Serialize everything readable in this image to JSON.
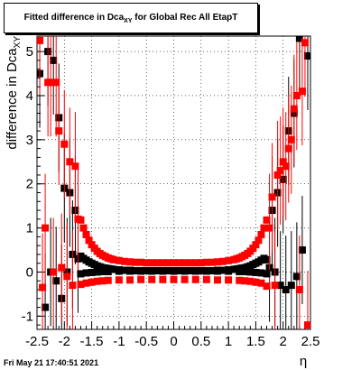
{
  "title": {
    "prefix": "Fitted difference in Dca",
    "subscript": "XY",
    "suffix": " for Global Rec All EtapT"
  },
  "timestamp": "Fri May 21 17:40:51 2021",
  "chart_data": {
    "type": "scatter",
    "xlabel": "η",
    "ylabel_prefix": "difference in Dca",
    "ylabel_subscript": "XY",
    "xlim": [
      -2.5,
      2.5
    ],
    "ylim": [
      -1.3,
      5.35
    ],
    "x_ticks": [
      "-2.5",
      "-2",
      "-1.5",
      "-1",
      "-0.5",
      "0",
      "0.5",
      "1",
      "1.5",
      "2",
      "2.5"
    ],
    "y_ticks": [
      "-1",
      "0",
      "1",
      "2",
      "3",
      "4",
      "5"
    ],
    "grid": true,
    "series": [
      {
        "color": "#000000",
        "marker": "square",
        "points": [
          [
            -2.45,
            4.5
          ],
          [
            -2.35,
            -0.8
          ],
          [
            -2.3,
            5.0
          ],
          [
            -2.25,
            0.0
          ],
          [
            -2.2,
            4.8
          ],
          [
            -2.15,
            -0.2
          ],
          [
            -2.1,
            3.5
          ],
          [
            -2.05,
            -0.6
          ],
          [
            -2.0,
            1.9
          ],
          [
            -1.95,
            0.0
          ],
          [
            -1.9,
            1.8
          ],
          [
            -1.85,
            0.4
          ],
          [
            -1.8,
            1.4
          ],
          [
            -1.75,
            0.3
          ],
          [
            -1.7,
            0.36
          ],
          [
            -1.65,
            0.31
          ],
          [
            -1.6,
            0.27
          ],
          [
            -1.55,
            0.23
          ],
          [
            -1.5,
            0.2
          ],
          [
            -1.45,
            0.17
          ],
          [
            -1.4,
            0.14
          ],
          [
            -1.35,
            0.12
          ],
          [
            -1.3,
            0.1
          ],
          [
            -1.25,
            0.09
          ],
          [
            -1.2,
            0.08
          ],
          [
            -1.15,
            0.07
          ],
          [
            -1.1,
            0.06
          ],
          [
            -1.0,
            0.05
          ],
          [
            -0.9,
            0.04
          ],
          [
            -0.8,
            0.04
          ],
          [
            -0.7,
            0.03
          ],
          [
            -0.6,
            0.03
          ],
          [
            -0.5,
            0.03
          ],
          [
            -0.4,
            0.03
          ],
          [
            -0.3,
            0.03
          ],
          [
            -0.2,
            0.03
          ],
          [
            -0.1,
            0.03
          ],
          [
            0.0,
            0.03
          ],
          [
            0.1,
            0.03
          ],
          [
            0.2,
            0.03
          ],
          [
            0.3,
            0.03
          ],
          [
            0.4,
            0.03
          ],
          [
            0.5,
            0.03
          ],
          [
            0.6,
            0.03
          ],
          [
            0.7,
            0.03
          ],
          [
            0.8,
            0.04
          ],
          [
            0.9,
            0.04
          ],
          [
            1.0,
            0.05
          ],
          [
            1.1,
            0.06
          ],
          [
            1.15,
            0.07
          ],
          [
            1.2,
            0.08
          ],
          [
            1.25,
            0.09
          ],
          [
            1.3,
            0.1
          ],
          [
            1.35,
            0.12
          ],
          [
            1.4,
            0.14
          ],
          [
            1.45,
            0.17
          ],
          [
            1.5,
            0.2
          ],
          [
            1.55,
            0.23
          ],
          [
            1.6,
            0.27
          ],
          [
            1.65,
            0.31
          ],
          [
            1.7,
            0.28
          ],
          [
            1.75,
            0.1
          ],
          [
            1.8,
            1.4
          ],
          [
            1.85,
            0.0
          ],
          [
            1.9,
            1.8
          ],
          [
            1.95,
            -0.3
          ],
          [
            2.0,
            2.1
          ],
          [
            2.05,
            -0.4
          ],
          [
            2.1,
            3.2
          ],
          [
            2.15,
            -0.3
          ],
          [
            2.2,
            3.6
          ],
          [
            2.25,
            -0.1
          ],
          [
            2.3,
            5.3
          ],
          [
            2.35,
            0.5
          ],
          [
            2.45,
            4.9
          ]
        ]
      },
      {
        "color": "#ff0000",
        "marker": "square",
        "points": [
          [
            -2.45,
            5.25
          ],
          [
            -2.4,
            -0.35
          ],
          [
            -2.35,
            1.0
          ],
          [
            -2.3,
            4.3
          ],
          [
            -2.25,
            4.3
          ],
          [
            -2.2,
            0.0
          ],
          [
            -2.15,
            4.3
          ],
          [
            -2.1,
            3.2
          ],
          [
            -2.05,
            0.1
          ],
          [
            -2.0,
            2.9
          ],
          [
            -1.95,
            -0.1
          ],
          [
            -1.9,
            2.5
          ],
          [
            -1.85,
            -0.3
          ],
          [
            -1.8,
            2.4
          ],
          [
            -1.75,
            1.2
          ],
          [
            -1.7,
            1.18
          ],
          [
            -1.65,
            1.0
          ],
          [
            -1.6,
            0.85
          ],
          [
            -1.55,
            0.72
          ],
          [
            -1.5,
            0.62
          ],
          [
            -1.45,
            0.54
          ],
          [
            -1.4,
            0.47
          ],
          [
            -1.35,
            0.42
          ],
          [
            -1.3,
            0.38
          ],
          [
            -1.25,
            0.35
          ],
          [
            -1.2,
            0.32
          ],
          [
            -1.15,
            0.3
          ],
          [
            -1.1,
            0.28
          ],
          [
            -1.0,
            0.26
          ],
          [
            -0.9,
            0.24
          ],
          [
            -0.8,
            0.23
          ],
          [
            -0.7,
            0.22
          ],
          [
            -0.6,
            0.22
          ],
          [
            -0.5,
            0.21
          ],
          [
            -0.4,
            0.21
          ],
          [
            -0.3,
            0.21
          ],
          [
            -0.2,
            0.21
          ],
          [
            -0.1,
            0.21
          ],
          [
            0.0,
            0.21
          ],
          [
            0.1,
            0.21
          ],
          [
            0.2,
            0.21
          ],
          [
            0.3,
            0.21
          ],
          [
            0.4,
            0.21
          ],
          [
            0.5,
            0.21
          ],
          [
            0.6,
            0.22
          ],
          [
            0.7,
            0.22
          ],
          [
            0.8,
            0.23
          ],
          [
            0.9,
            0.24
          ],
          [
            1.0,
            0.26
          ],
          [
            1.1,
            0.28
          ],
          [
            1.15,
            0.3
          ],
          [
            1.2,
            0.32
          ],
          [
            1.25,
            0.35
          ],
          [
            1.3,
            0.38
          ],
          [
            1.35,
            0.42
          ],
          [
            1.4,
            0.47
          ],
          [
            1.45,
            0.54
          ],
          [
            1.5,
            0.62
          ],
          [
            1.55,
            0.72
          ],
          [
            1.6,
            0.85
          ],
          [
            1.65,
            1.0
          ],
          [
            1.7,
            1.18
          ],
          [
            1.75,
            1.0
          ],
          [
            1.8,
            1.7
          ],
          [
            1.85,
            -0.3
          ],
          [
            1.9,
            2.2
          ],
          [
            1.95,
            2.3
          ],
          [
            2.0,
            2.5
          ],
          [
            2.05,
            2.4
          ],
          [
            2.1,
            2.8
          ],
          [
            2.15,
            3.0
          ],
          [
            2.2,
            3.7
          ],
          [
            2.25,
            4.0
          ],
          [
            2.3,
            -0.4
          ],
          [
            2.35,
            4.1
          ],
          [
            2.4,
            5.2
          ],
          [
            2.45,
            -1.2
          ]
        ]
      },
      {
        "color": "#000000",
        "marker": "square",
        "points": [
          [
            -1.7,
            -0.04
          ],
          [
            -1.6,
            -0.02
          ],
          [
            -1.5,
            -0.01
          ],
          [
            -1.4,
            0.0
          ],
          [
            -1.3,
            0.01
          ],
          [
            -1.2,
            0.01
          ],
          [
            -1.0,
            0.02
          ],
          [
            -0.8,
            0.02
          ],
          [
            -0.6,
            0.02
          ],
          [
            -0.4,
            0.02
          ],
          [
            -0.2,
            0.02
          ],
          [
            0.0,
            0.02
          ],
          [
            0.2,
            0.02
          ],
          [
            0.4,
            0.02
          ],
          [
            0.6,
            0.02
          ],
          [
            0.8,
            0.02
          ],
          [
            1.0,
            0.02
          ],
          [
            1.2,
            0.01
          ],
          [
            1.3,
            0.01
          ],
          [
            1.4,
            0.0
          ],
          [
            1.5,
            -0.01
          ],
          [
            1.6,
            -0.02
          ],
          [
            1.7,
            -0.04
          ]
        ]
      },
      {
        "color": "#ff0000",
        "marker": "square",
        "points": [
          [
            -1.7,
            -0.28
          ],
          [
            -1.6,
            -0.25
          ],
          [
            -1.5,
            -0.23
          ],
          [
            -1.4,
            -0.21
          ],
          [
            -1.3,
            -0.2
          ],
          [
            -1.2,
            -0.19
          ],
          [
            -1.0,
            -0.18
          ],
          [
            -0.8,
            -0.18
          ],
          [
            -0.6,
            -0.17
          ],
          [
            -0.4,
            -0.17
          ],
          [
            -0.2,
            -0.17
          ],
          [
            0.0,
            -0.17
          ],
          [
            0.2,
            -0.17
          ],
          [
            0.4,
            -0.17
          ],
          [
            0.6,
            -0.17
          ],
          [
            0.8,
            -0.18
          ],
          [
            1.0,
            -0.18
          ],
          [
            1.2,
            -0.19
          ],
          [
            1.3,
            -0.2
          ],
          [
            1.4,
            -0.21
          ],
          [
            1.5,
            -0.23
          ],
          [
            1.6,
            -0.25
          ],
          [
            1.7,
            -0.32
          ]
        ]
      }
    ]
  }
}
